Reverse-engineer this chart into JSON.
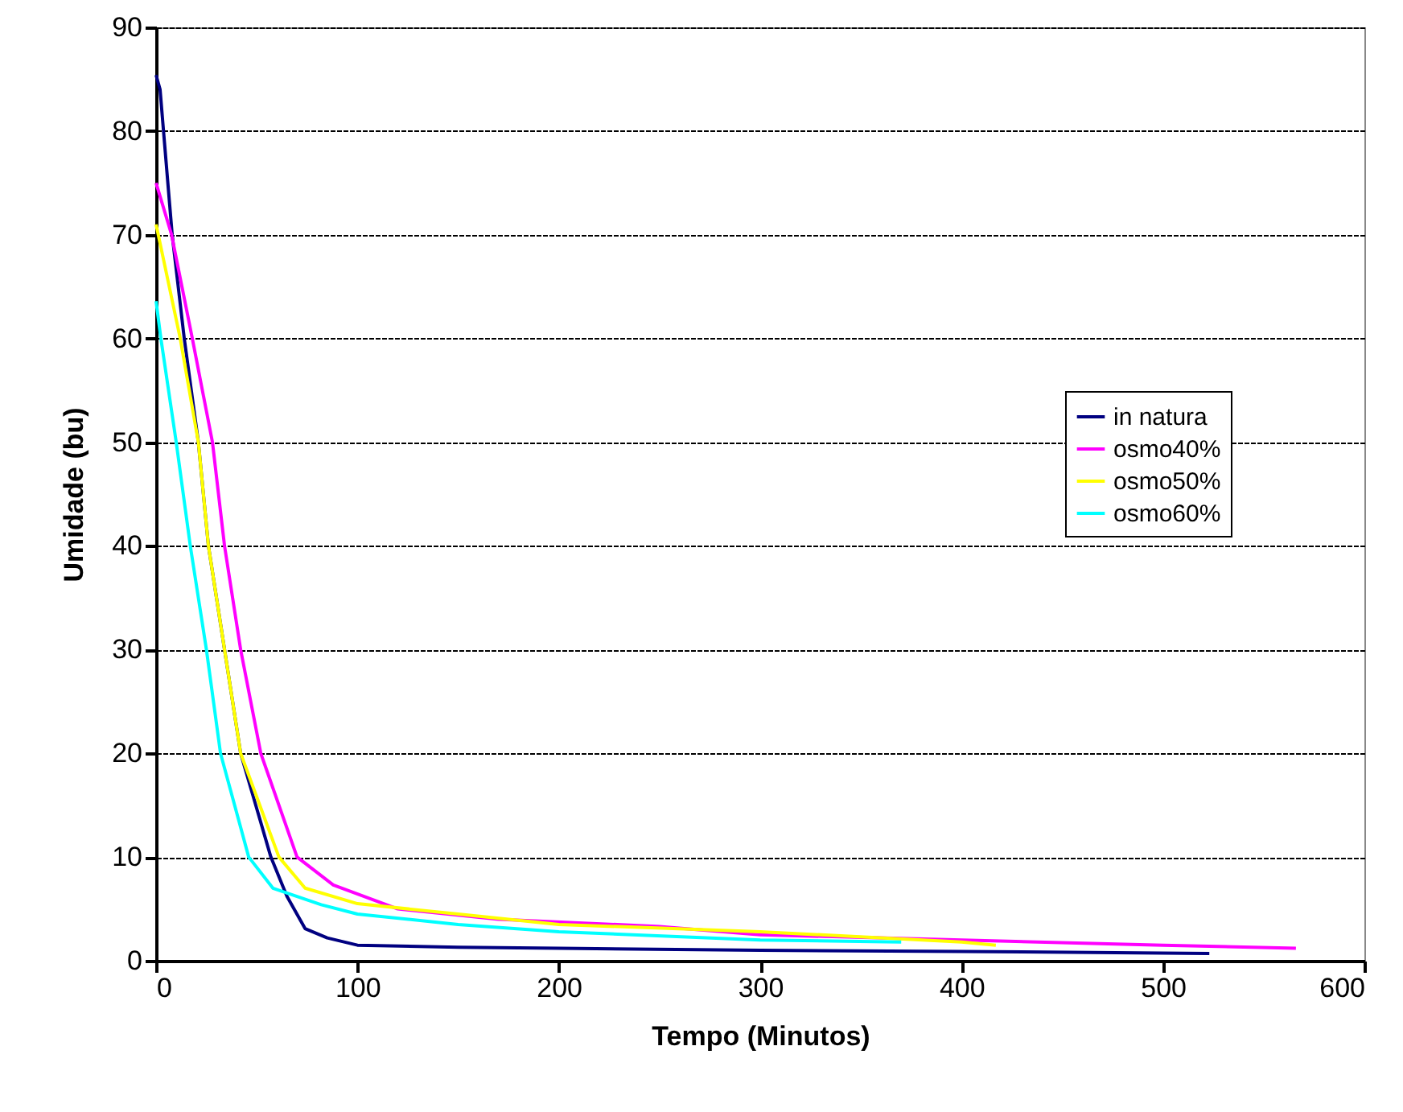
{
  "chart_data": {
    "type": "line",
    "xlabel": "Tempo (Minutos)",
    "ylabel": "Umidade (bu)",
    "xlim": [
      0,
      600
    ],
    "xticks": [
      0,
      100,
      200,
      300,
      400,
      500,
      600
    ],
    "ylim": [
      0,
      90
    ],
    "yticks": [
      0,
      10,
      20,
      30,
      40,
      50,
      60,
      70,
      80,
      90
    ],
    "grid": "y",
    "legend": "right",
    "marker": "none",
    "line_style": "solid",
    "series": [
      {
        "name": "in natura",
        "color": "#000080",
        "x": [
          0,
          2,
          3.7,
          8,
          14,
          21,
          26,
          34,
          42,
          57,
          65,
          74,
          85,
          100,
          150,
          200,
          300,
          400,
          523
        ],
        "values": [
          85.4,
          84,
          80,
          70,
          60,
          50,
          40,
          30,
          20,
          10,
          6.2,
          3.1,
          2.2,
          1.5,
          1.3,
          1.2,
          1.0,
          0.9,
          0.7
        ]
      },
      {
        "name": "osmo40%",
        "color": "#ff00ff",
        "x": [
          0,
          7.7,
          18,
          28,
          34,
          42,
          52,
          70,
          88,
          120,
          170,
          250,
          300,
          400,
          500,
          566
        ],
        "values": [
          75,
          70,
          60,
          50,
          40,
          30,
          20,
          10,
          7.3,
          5,
          4,
          3.3,
          2.5,
          2,
          1.5,
          1.2
        ]
      },
      {
        "name": "osmo50%",
        "color": "#ffff00",
        "x": [
          0,
          12,
          21,
          26,
          34,
          42,
          61,
          74,
          100,
          150,
          200,
          300,
          400,
          417
        ],
        "values": [
          71,
          60,
          50,
          40,
          30,
          20,
          10,
          7,
          5.5,
          4.5,
          3.5,
          2.8,
          1.8,
          1.5
        ]
      },
      {
        "name": "osmo60%",
        "color": "#00ffff",
        "x": [
          0,
          2.4,
          10,
          17,
          25,
          32,
          46,
          58,
          82,
          100,
          150,
          200,
          300,
          370
        ],
        "values": [
          63.6,
          60,
          50,
          40,
          30,
          20,
          10,
          7,
          5.4,
          4.5,
          3.5,
          2.8,
          2,
          1.8
        ]
      }
    ]
  }
}
